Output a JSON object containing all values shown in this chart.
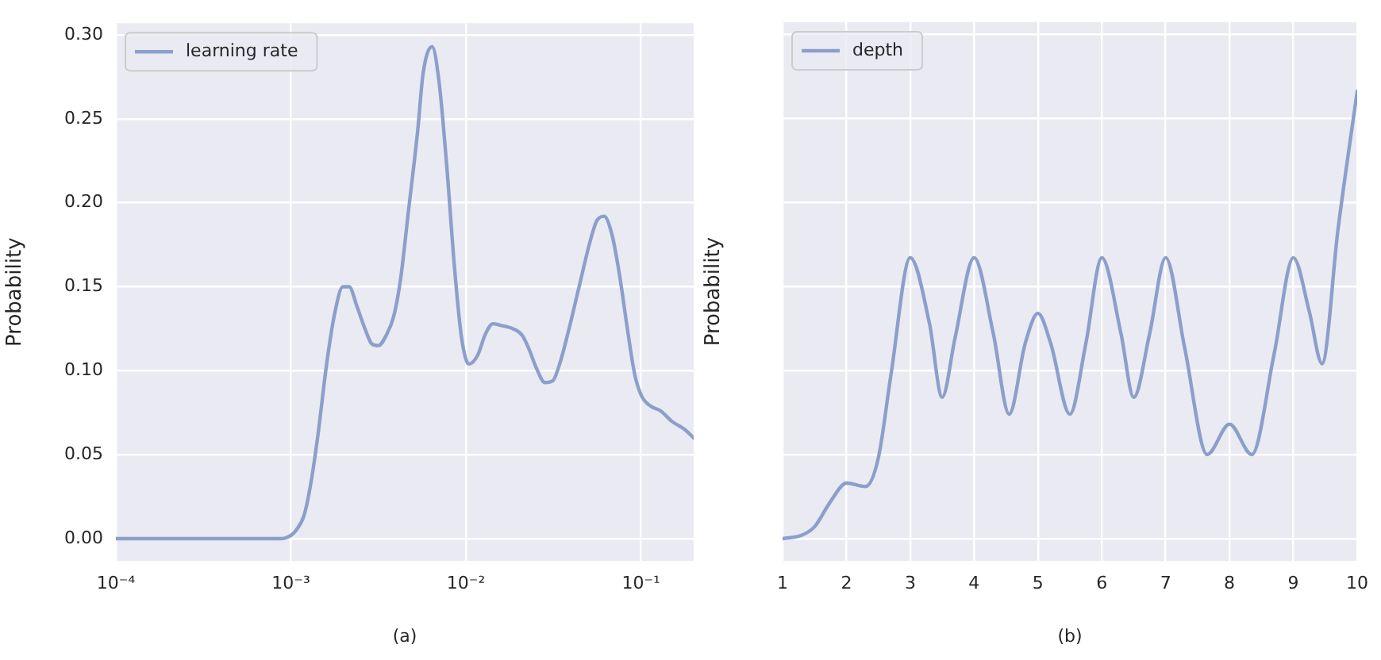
{
  "chart_data": [
    {
      "type": "line",
      "xlabel": "(a)",
      "ylabel": "Probability",
      "log": "x",
      "legend": "top left",
      "grid": true,
      "marker": "none",
      "line_style": "solid",
      "xlim": [
        0.0001,
        0.2
      ],
      "xticks": [
        {
          "value": 0.0001,
          "label": "10⁻⁴"
        },
        {
          "value": 0.001,
          "label": "10⁻³"
        },
        {
          "value": 0.01,
          "label": "10⁻²"
        },
        {
          "value": 0.1,
          "label": "10⁻¹"
        }
      ],
      "ylim": [
        -0.0133,
        0.307
      ],
      "yticks": [
        {
          "value": 0,
          "label": "0.00"
        },
        {
          "value": 0.05,
          "label": "0.05"
        },
        {
          "value": 0.1,
          "label": "0.10"
        },
        {
          "value": 0.15,
          "label": "0.15"
        },
        {
          "value": 0.2,
          "label": "0.20"
        },
        {
          "value": 0.25,
          "label": "0.25"
        },
        {
          "value": 0.3,
          "label": "0.30"
        }
      ],
      "x": [
        0.0001,
        0.00087,
        0.001,
        0.00107,
        0.00119,
        0.0013,
        0.00142,
        0.0016,
        0.00177,
        0.00198,
        0.00215,
        0.00239,
        0.00265,
        0.0029,
        0.00316,
        0.0035,
        0.00388,
        0.00425,
        0.00468,
        0.0053,
        0.00569,
        0.00641,
        0.00702,
        0.00778,
        0.00864,
        0.00946,
        0.0104,
        0.01164,
        0.01294,
        0.01426,
        0.0158,
        0.01857,
        0.021,
        0.0229,
        0.0254,
        0.0282,
        0.0313,
        0.0343,
        0.0386,
        0.0443,
        0.0509,
        0.0557,
        0.0615,
        0.0683,
        0.0757,
        0.0828,
        0.092,
        0.1007,
        0.1133,
        0.13,
        0.1496,
        0.178,
        0.2
      ],
      "series": [
        {
          "name": "learning rate",
          "color": "#8c9fcb",
          "values": [
            0,
            0,
            0.002,
            0.005,
            0.014,
            0.033,
            0.06,
            0.104,
            0.133,
            0.15,
            0.15,
            0.138,
            0.125,
            0.116,
            0.115,
            0.121,
            0.133,
            0.156,
            0.194,
            0.243,
            0.277,
            0.293,
            0.272,
            0.221,
            0.159,
            0.119,
            0.104,
            0.109,
            0.122,
            0.128,
            0.127,
            0.125,
            0.121,
            0.113,
            0.101,
            0.093,
            0.094,
            0.104,
            0.124,
            0.15,
            0.176,
            0.189,
            0.192,
            0.181,
            0.156,
            0.128,
            0.098,
            0.085,
            0.079,
            0.076,
            0.07,
            0.065,
            0.06
          ]
        }
      ]
    },
    {
      "type": "line",
      "xlabel": "(b)",
      "ylabel": "Probability",
      "legend": "top left",
      "grid": true,
      "marker": "none",
      "line_style": "solid",
      "tick_labels": "x",
      "xlim": [
        1,
        10
      ],
      "xticks": [
        1,
        2,
        3,
        4,
        5,
        6,
        7,
        8,
        9,
        10
      ],
      "ylim": [
        -0.0133,
        0.307
      ],
      "yticks": [
        0,
        0.05,
        0.1,
        0.15,
        0.2,
        0.25,
        0.3
      ],
      "x": [
        1,
        1.3,
        1.5,
        1.75,
        2,
        2.3,
        2.5,
        2.7,
        3,
        3.3,
        3.5,
        3.7,
        4,
        4.3,
        4.55,
        4.8,
        5,
        5.2,
        5.5,
        5.75,
        6,
        6.3,
        6.5,
        6.75,
        7,
        7.3,
        7.65,
        8,
        8.35,
        8.7,
        9,
        9.25,
        9.45,
        9.7,
        10
      ],
      "series": [
        {
          "name": "depth",
          "color": "#8c9fcb",
          "values": [
            0,
            0.002,
            0.007,
            0.022,
            0.033,
            0.031,
            0.048,
            0.098,
            0.167,
            0.128,
            0.084,
            0.119,
            0.167,
            0.122,
            0.074,
            0.116,
            0.134,
            0.116,
            0.074,
            0.116,
            0.167,
            0.122,
            0.084,
            0.122,
            0.167,
            0.113,
            0.05,
            0.068,
            0.05,
            0.11,
            0.167,
            0.135,
            0.104,
            0.184,
            0.266
          ]
        }
      ]
    }
  ]
}
